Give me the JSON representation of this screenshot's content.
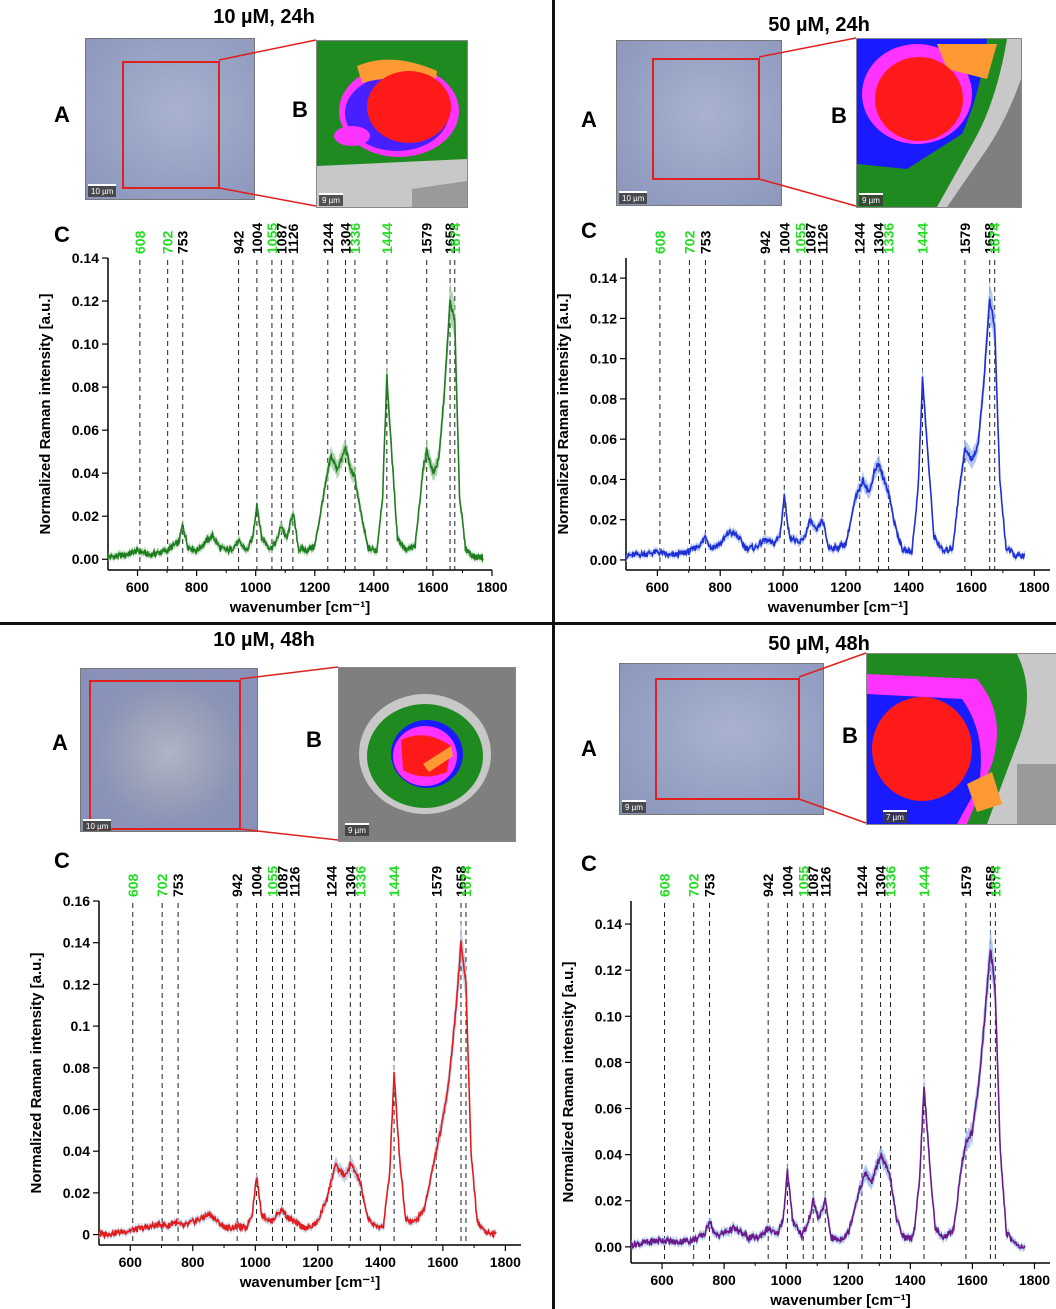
{
  "panels": [
    {
      "title": "10 µM, 24h",
      "letters": {
        "a": "A",
        "b": "B",
        "c": "C"
      },
      "micro_scalebar": "10 µm",
      "map_scalebar": "9 µm"
    },
    {
      "title": "50 µM, 24h",
      "letters": {
        "a": "A",
        "b": "B",
        "c": "C"
      },
      "micro_scalebar": "10 µm",
      "map_scalebar": "9 µm"
    },
    {
      "title": "10 µM, 48h",
      "letters": {
        "a": "A",
        "b": "B",
        "c": "C"
      },
      "micro_scalebar": "10 µm",
      "map_scalebar": "9 µm"
    },
    {
      "title": "50 µM, 48h",
      "letters": {
        "a": "A",
        "b": "B",
        "c": "C"
      },
      "micro_scalebar": "9 µm",
      "map_scalebar": "7 µm"
    }
  ],
  "colors": {
    "green_label": "#22dd22",
    "roi": "#e0201c",
    "map_red": "#ff1a1a",
    "map_magenta": "#ff33ff",
    "map_blue": "#1a1aff",
    "map_orange": "#ff9933",
    "map_green": "#1f8a1f",
    "map_lightgray": "#c8c8c8",
    "map_gray": "#7f7f7f"
  },
  "chart_data": [
    {
      "type": "line",
      "panel": "10 µM, 24h",
      "xlabel": "wavenumber [cm⁻¹]",
      "ylabel": "Normalized Raman intensity [a.u.]",
      "xlim": [
        500,
        1800
      ],
      "ylim": [
        -0.005,
        0.14
      ],
      "xticks": [
        600,
        800,
        1000,
        1200,
        1400,
        1600,
        1800
      ],
      "yticks": [
        0.0,
        0.02,
        0.04,
        0.06,
        0.08,
        0.1,
        0.12,
        0.14
      ],
      "ytick_labels": [
        "0.00",
        "0.02",
        "0.04",
        "0.06",
        "0.08",
        "0.10",
        "0.12",
        "0.14"
      ],
      "line_color": "#1e7d1e",
      "band_color": "#9cc99c",
      "peak_lines": [
        608,
        702,
        753,
        942,
        1004,
        1055,
        1087,
        1126,
        1244,
        1304,
        1336,
        1444,
        1579,
        1658,
        1674
      ],
      "peak_labels": [
        {
          "text": "608",
          "green": true
        },
        {
          "text": "702",
          "green": true
        },
        {
          "text": "753",
          "green": false
        },
        {
          "text": "942",
          "green": false
        },
        {
          "text": "1004",
          "green": false
        },
        {
          "text": "1055",
          "green": true
        },
        {
          "text": "1087",
          "green": false
        },
        {
          "text": "1126",
          "green": false
        },
        {
          "text": "1244",
          "green": false
        },
        {
          "text": "1304",
          "green": false
        },
        {
          "text": "1336",
          "green": true
        },
        {
          "text": "1444",
          "green": true
        },
        {
          "text": "1579",
          "green": false
        },
        {
          "text": "1658",
          "green": false
        },
        {
          "text": "1674",
          "green": true
        }
      ],
      "series": [
        {
          "x": [
            500,
            560,
            600,
            640,
            700,
            720,
            740,
            753,
            770,
            800,
            830,
            855,
            880,
            910,
            942,
            970,
            990,
            1004,
            1020,
            1050,
            1070,
            1087,
            1105,
            1126,
            1145,
            1170,
            1200,
            1230,
            1255,
            1275,
            1290,
            1304,
            1320,
            1336,
            1355,
            1380,
            1410,
            1430,
            1444,
            1460,
            1480,
            1510,
            1540,
            1565,
            1579,
            1600,
            1620,
            1640,
            1658,
            1674,
            1690,
            1710,
            1740,
            1770
          ],
          "y": [
            0.001,
            0.002,
            0.004,
            0.002,
            0.004,
            0.006,
            0.008,
            0.016,
            0.006,
            0.004,
            0.008,
            0.011,
            0.005,
            0.004,
            0.008,
            0.004,
            0.01,
            0.026,
            0.01,
            0.005,
            0.008,
            0.016,
            0.009,
            0.022,
            0.005,
            0.004,
            0.006,
            0.03,
            0.048,
            0.042,
            0.046,
            0.052,
            0.042,
            0.038,
            0.022,
            0.005,
            0.004,
            0.03,
            0.085,
            0.05,
            0.01,
            0.004,
            0.006,
            0.04,
            0.051,
            0.04,
            0.046,
            0.08,
            0.12,
            0.11,
            0.03,
            0.005,
            0.001,
            0.001
          ]
        }
      ]
    },
    {
      "type": "line",
      "panel": "50 µM, 24h",
      "xlabel": "wavenumber [cm⁻¹]",
      "ylabel": "Normalized Raman intensity [a.u.]",
      "xlim": [
        500,
        1850
      ],
      "ylim": [
        -0.005,
        0.15
      ],
      "xticks": [
        600,
        800,
        1000,
        1200,
        1400,
        1600,
        1800
      ],
      "yticks": [
        0.0,
        0.02,
        0.04,
        0.06,
        0.08,
        0.1,
        0.12,
        0.14
      ],
      "ytick_labels": [
        "0.00",
        "0.02",
        "0.04",
        "0.06",
        "0.08",
        "0.10",
        "0.12",
        "0.14"
      ],
      "line_color": "#1f2fd6",
      "band_color": "#9fb6f0",
      "peak_lines": [
        608,
        702,
        753,
        942,
        1004,
        1055,
        1087,
        1126,
        1244,
        1304,
        1336,
        1444,
        1579,
        1658,
        1674
      ],
      "peak_labels": [
        {
          "text": "608",
          "green": true
        },
        {
          "text": "702",
          "green": true
        },
        {
          "text": "753",
          "green": false
        },
        {
          "text": "942",
          "green": false
        },
        {
          "text": "1004",
          "green": false
        },
        {
          "text": "1055",
          "green": true
        },
        {
          "text": "1087",
          "green": false
        },
        {
          "text": "1126",
          "green": false
        },
        {
          "text": "1244",
          "green": false
        },
        {
          "text": "1304",
          "green": false
        },
        {
          "text": "1336",
          "green": true
        },
        {
          "text": "1444",
          "green": true
        },
        {
          "text": "1579",
          "green": false
        },
        {
          "text": "1658",
          "green": false
        },
        {
          "text": "1674",
          "green": true
        }
      ],
      "series": [
        {
          "x": [
            500,
            560,
            600,
            640,
            700,
            720,
            740,
            753,
            770,
            800,
            830,
            855,
            880,
            910,
            942,
            970,
            990,
            1004,
            1020,
            1050,
            1070,
            1087,
            1105,
            1126,
            1145,
            1170,
            1200,
            1230,
            1255,
            1275,
            1290,
            1304,
            1320,
            1336,
            1355,
            1380,
            1410,
            1430,
            1444,
            1460,
            1480,
            1510,
            1540,
            1565,
            1579,
            1600,
            1620,
            1640,
            1658,
            1674,
            1690,
            1710,
            1740,
            1770
          ],
          "y": [
            0.002,
            0.003,
            0.004,
            0.002,
            0.004,
            0.006,
            0.008,
            0.012,
            0.006,
            0.008,
            0.014,
            0.012,
            0.006,
            0.006,
            0.01,
            0.008,
            0.012,
            0.032,
            0.012,
            0.008,
            0.012,
            0.02,
            0.014,
            0.02,
            0.006,
            0.006,
            0.008,
            0.03,
            0.04,
            0.033,
            0.044,
            0.048,
            0.04,
            0.034,
            0.018,
            0.005,
            0.004,
            0.035,
            0.09,
            0.055,
            0.012,
            0.004,
            0.006,
            0.04,
            0.055,
            0.05,
            0.056,
            0.09,
            0.13,
            0.115,
            0.04,
            0.006,
            0.002,
            0.002
          ]
        }
      ]
    },
    {
      "type": "line",
      "panel": "10 µM, 48h",
      "xlabel": "wavenumber [cm⁻¹]",
      "ylabel": "Normalized Raman intensity [a.u.]",
      "xlim": [
        500,
        1850
      ],
      "ylim": [
        -0.005,
        0.16
      ],
      "xticks": [
        600,
        800,
        1000,
        1200,
        1400,
        1600,
        1800
      ],
      "yticks": [
        0,
        0.02,
        0.04,
        0.06,
        0.08,
        0.1,
        0.12,
        0.14,
        0.16
      ],
      "ytick_labels": [
        "0",
        "0.02",
        "0.04",
        "0.06",
        "0.08",
        "0.1",
        "0.12",
        "0.14",
        "0.16"
      ],
      "line_color": "#e41a1a",
      "band_color": "#b8c4de",
      "peak_lines": [
        608,
        702,
        753,
        942,
        1004,
        1055,
        1087,
        1126,
        1244,
        1304,
        1336,
        1444,
        1579,
        1658,
        1674
      ],
      "peak_labels": [
        {
          "text": "608",
          "green": true
        },
        {
          "text": "702",
          "green": true
        },
        {
          "text": "753",
          "green": false
        },
        {
          "text": "942",
          "green": false
        },
        {
          "text": "1004",
          "green": false
        },
        {
          "text": "1055",
          "green": true
        },
        {
          "text": "1087",
          "green": false
        },
        {
          "text": "1126",
          "green": false
        },
        {
          "text": "1244",
          "green": false
        },
        {
          "text": "1304",
          "green": false
        },
        {
          "text": "1336",
          "green": true
        },
        {
          "text": "1444",
          "green": true
        },
        {
          "text": "1579",
          "green": false
        },
        {
          "text": "1658",
          "green": false
        },
        {
          "text": "1674",
          "green": true
        }
      ],
      "series": [
        {
          "x": [
            500,
            560,
            600,
            640,
            700,
            720,
            740,
            753,
            770,
            800,
            830,
            855,
            880,
            910,
            942,
            970,
            990,
            1004,
            1020,
            1050,
            1070,
            1087,
            1105,
            1126,
            1145,
            1170,
            1200,
            1230,
            1255,
            1275,
            1290,
            1304,
            1320,
            1336,
            1355,
            1380,
            1410,
            1430,
            1444,
            1460,
            1480,
            1510,
            1540,
            1565,
            1579,
            1600,
            1620,
            1640,
            1658,
            1674,
            1690,
            1710,
            1740,
            1770
          ],
          "y": [
            0.0,
            0.001,
            0.002,
            0.003,
            0.005,
            0.004,
            0.006,
            0.005,
            0.004,
            0.006,
            0.008,
            0.01,
            0.006,
            0.003,
            0.004,
            0.003,
            0.01,
            0.028,
            0.01,
            0.006,
            0.01,
            0.012,
            0.008,
            0.006,
            0.004,
            0.003,
            0.006,
            0.018,
            0.033,
            0.03,
            0.028,
            0.034,
            0.03,
            0.025,
            0.01,
            0.004,
            0.004,
            0.03,
            0.078,
            0.04,
            0.008,
            0.006,
            0.012,
            0.03,
            0.04,
            0.055,
            0.075,
            0.105,
            0.14,
            0.12,
            0.04,
            0.006,
            0.001,
            0.0
          ]
        }
      ]
    },
    {
      "type": "line",
      "panel": "50 µM, 48h",
      "xlabel": "wavenumber [cm⁻¹]",
      "ylabel": "Normalized Raman intensity [a.u.]",
      "xlim": [
        500,
        1850
      ],
      "ylim": [
        -0.007,
        0.15
      ],
      "xticks": [
        600,
        800,
        1000,
        1200,
        1400,
        1600,
        1800
      ],
      "yticks": [
        0.0,
        0.02,
        0.04,
        0.06,
        0.08,
        0.1,
        0.12,
        0.14
      ],
      "ytick_labels": [
        "0.00",
        "0.02",
        "0.04",
        "0.06",
        "0.08",
        "0.10",
        "0.12",
        "0.14"
      ],
      "line_color": "#6a1a8a",
      "band_color": "#98b8e8",
      "peak_lines": [
        608,
        702,
        753,
        942,
        1004,
        1055,
        1087,
        1126,
        1244,
        1304,
        1336,
        1444,
        1579,
        1658,
        1674
      ],
      "peak_labels": [
        {
          "text": "608",
          "green": true
        },
        {
          "text": "702",
          "green": true
        },
        {
          "text": "753",
          "green": false
        },
        {
          "text": "942",
          "green": false
        },
        {
          "text": "1004",
          "green": false
        },
        {
          "text": "1055",
          "green": true
        },
        {
          "text": "1087",
          "green": false
        },
        {
          "text": "1126",
          "green": false
        },
        {
          "text": "1244",
          "green": false
        },
        {
          "text": "1304",
          "green": false
        },
        {
          "text": "1336",
          "green": true
        },
        {
          "text": "1444",
          "green": true
        },
        {
          "text": "1579",
          "green": false
        },
        {
          "text": "1658",
          "green": false
        },
        {
          "text": "1674",
          "green": true
        }
      ],
      "series": [
        {
          "x": [
            500,
            560,
            600,
            640,
            700,
            720,
            740,
            753,
            770,
            800,
            830,
            855,
            880,
            910,
            942,
            970,
            990,
            1004,
            1020,
            1050,
            1070,
            1087,
            1105,
            1126,
            1145,
            1170,
            1200,
            1230,
            1255,
            1275,
            1290,
            1304,
            1320,
            1336,
            1355,
            1380,
            1410,
            1430,
            1444,
            1460,
            1480,
            1510,
            1540,
            1565,
            1579,
            1600,
            1620,
            1640,
            1658,
            1674,
            1690,
            1710,
            1740,
            1770
          ],
          "y": [
            0.001,
            0.002,
            0.003,
            0.002,
            0.003,
            0.004,
            0.006,
            0.012,
            0.005,
            0.006,
            0.008,
            0.006,
            0.004,
            0.004,
            0.008,
            0.005,
            0.012,
            0.033,
            0.012,
            0.005,
            0.01,
            0.02,
            0.012,
            0.02,
            0.004,
            0.003,
            0.006,
            0.022,
            0.032,
            0.028,
            0.034,
            0.04,
            0.035,
            0.03,
            0.012,
            0.004,
            0.004,
            0.03,
            0.07,
            0.04,
            0.008,
            0.004,
            0.008,
            0.035,
            0.045,
            0.05,
            0.07,
            0.1,
            0.13,
            0.11,
            0.04,
            0.006,
            0.001,
            0.0
          ]
        }
      ]
    }
  ]
}
